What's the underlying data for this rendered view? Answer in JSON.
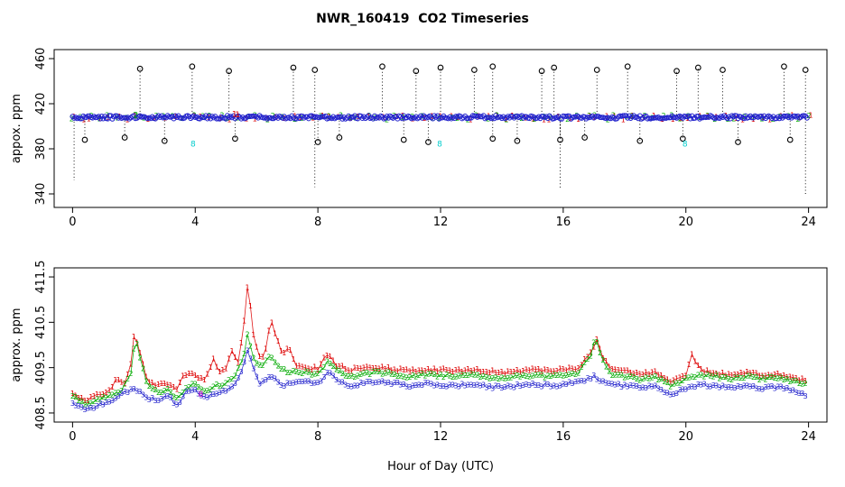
{
  "title": "NWR_160419  CO2 Timeseries",
  "chart_data": [
    {
      "type": "scatter",
      "panel": "top",
      "ylabel": "appox. ppm",
      "ylim": [
        328,
        468
      ],
      "yticks": [
        340,
        380,
        420,
        460
      ],
      "xlim": [
        -0.6,
        24.6
      ],
      "xticks": [
        0,
        4,
        8,
        12,
        16,
        20,
        24
      ],
      "grid": false,
      "band": {
        "x_start": 0,
        "x_end": 23.95,
        "step": 0.05,
        "value": 408,
        "jitter": 1.5,
        "marker": "open-circle",
        "color": "#2222cc",
        "overplot_step": 0.3,
        "overplot_chars": [
          {
            "char": "1",
            "color": "#dd0000"
          },
          {
            "char": "2",
            "color": "#00aa00"
          }
        ]
      },
      "high_spikes": {
        "marker": "open-circle",
        "color": "#000000",
        "stem_from": 410,
        "points": [
          [
            2.2,
            451
          ],
          [
            3.9,
            453
          ],
          [
            5.1,
            449
          ],
          [
            7.2,
            452
          ],
          [
            7.9,
            450
          ],
          [
            10.1,
            453
          ],
          [
            11.2,
            449
          ],
          [
            12.0,
            452
          ],
          [
            13.1,
            450
          ],
          [
            13.7,
            453
          ],
          [
            15.3,
            449
          ],
          [
            15.7,
            452
          ],
          [
            17.1,
            450
          ],
          [
            18.1,
            453
          ],
          [
            19.7,
            449
          ],
          [
            20.4,
            452
          ],
          [
            21.2,
            450
          ],
          [
            23.2,
            453
          ],
          [
            23.9,
            450
          ]
        ]
      },
      "low_spikes": {
        "marker": "open-circle",
        "color": "#000000",
        "stem_from": 405,
        "points": [
          [
            0.4,
            388
          ],
          [
            1.7,
            390
          ],
          [
            3.0,
            387
          ],
          [
            5.3,
            389
          ],
          [
            8.0,
            386
          ],
          [
            8.7,
            390
          ],
          [
            10.8,
            388
          ],
          [
            11.6,
            386
          ],
          [
            13.7,
            389
          ],
          [
            14.5,
            387
          ],
          [
            15.9,
            388
          ],
          [
            16.7,
            390
          ],
          [
            18.5,
            387
          ],
          [
            19.9,
            389
          ],
          [
            21.7,
            386
          ],
          [
            23.4,
            388
          ]
        ]
      },
      "deep_stems": [
        [
          0.05,
          352
        ],
        [
          7.9,
          346
        ],
        [
          15.9,
          344
        ],
        [
          23.9,
          340
        ]
      ],
      "char_marks": [
        {
          "x": 3.93,
          "y": 384.5,
          "char": "8",
          "color": "#00cccc"
        },
        {
          "x": 11.97,
          "y": 384.5,
          "char": "8",
          "color": "#00cccc"
        },
        {
          "x": 19.97,
          "y": 384.5,
          "char": "8",
          "color": "#00cccc"
        },
        {
          "x": 5.28,
          "y": 410.8,
          "char": "1",
          "color": "#dd0000"
        },
        {
          "x": 5.38,
          "y": 410.3,
          "char": "1",
          "color": "#dd0000"
        },
        {
          "x": 2.06,
          "y": 409.9,
          "char": "2",
          "color": "#00aa00"
        }
      ]
    },
    {
      "type": "line",
      "panel": "bottom",
      "ylabel": "approx. ppm",
      "xlabel": "Hour of Day (UTC)",
      "ylim": [
        408.3,
        411.7
      ],
      "yticks": [
        408.5,
        409.5,
        410.5,
        411.5
      ],
      "xlim": [
        -0.6,
        24.6
      ],
      "xticks": [
        0,
        4,
        8,
        12,
        16,
        20,
        24
      ],
      "grid": false,
      "sample_step": 0.1,
      "noise": 0.035,
      "seed": 11,
      "series": [
        {
          "name": "1",
          "char": "1",
          "color": "#dd0000",
          "anchors": [
            [
              0,
              408.95
            ],
            [
              0.4,
              408.78
            ],
            [
              0.8,
              408.88
            ],
            [
              1.2,
              409.0
            ],
            [
              1.45,
              409.25
            ],
            [
              1.7,
              409.15
            ],
            [
              1.9,
              409.55
            ],
            [
              2.02,
              410.3
            ],
            [
              2.2,
              409.8
            ],
            [
              2.45,
              409.2
            ],
            [
              2.8,
              409.1
            ],
            [
              3.1,
              409.15
            ],
            [
              3.4,
              409.0
            ],
            [
              3.6,
              409.3
            ],
            [
              3.8,
              409.4
            ],
            [
              4.0,
              409.3
            ],
            [
              4.3,
              409.22
            ],
            [
              4.6,
              409.7
            ],
            [
              4.8,
              409.4
            ],
            [
              5.0,
              409.5
            ],
            [
              5.2,
              409.9
            ],
            [
              5.4,
              409.6
            ],
            [
              5.58,
              410.4
            ],
            [
              5.72,
              411.45
            ],
            [
              5.88,
              410.3
            ],
            [
              6.05,
              409.8
            ],
            [
              6.25,
              409.7
            ],
            [
              6.45,
              410.55
            ],
            [
              6.65,
              410.2
            ],
            [
              6.85,
              409.75
            ],
            [
              7.05,
              409.95
            ],
            [
              7.3,
              409.55
            ],
            [
              7.6,
              409.5
            ],
            [
              8.0,
              409.48
            ],
            [
              8.3,
              409.8
            ],
            [
              8.55,
              409.58
            ],
            [
              9.0,
              409.45
            ],
            [
              9.5,
              409.48
            ],
            [
              10.0,
              409.5
            ],
            [
              10.5,
              409.46
            ],
            [
              11.0,
              409.42
            ],
            [
              11.5,
              409.46
            ],
            [
              12.0,
              409.45
            ],
            [
              12.5,
              409.42
            ],
            [
              13.0,
              409.45
            ],
            [
              13.5,
              409.42
            ],
            [
              14.0,
              409.38
            ],
            [
              14.5,
              409.42
            ],
            [
              15.0,
              409.45
            ],
            [
              15.5,
              409.42
            ],
            [
              16.0,
              409.45
            ],
            [
              16.5,
              409.5
            ],
            [
              16.9,
              409.85
            ],
            [
              17.1,
              410.1
            ],
            [
              17.35,
              409.65
            ],
            [
              17.6,
              409.45
            ],
            [
              18.0,
              409.42
            ],
            [
              18.5,
              409.36
            ],
            [
              19.0,
              409.4
            ],
            [
              19.5,
              409.2
            ],
            [
              20.0,
              409.35
            ],
            [
              20.2,
              409.8
            ],
            [
              20.45,
              409.45
            ],
            [
              21.0,
              409.38
            ],
            [
              21.5,
              409.33
            ],
            [
              22.0,
              409.38
            ],
            [
              22.5,
              409.33
            ],
            [
              23.0,
              409.36
            ],
            [
              23.5,
              409.28
            ],
            [
              23.92,
              409.22
            ]
          ]
        },
        {
          "name": "2",
          "char": "2",
          "color": "#00aa00",
          "anchors": [
            [
              0,
              408.88
            ],
            [
              0.4,
              408.68
            ],
            [
              0.8,
              408.78
            ],
            [
              1.2,
              408.88
            ],
            [
              1.6,
              409.0
            ],
            [
              1.9,
              409.4
            ],
            [
              2.05,
              410.15
            ],
            [
              2.2,
              409.7
            ],
            [
              2.45,
              409.1
            ],
            [
              2.8,
              408.95
            ],
            [
              3.1,
              409.0
            ],
            [
              3.4,
              408.85
            ],
            [
              3.7,
              409.05
            ],
            [
              4.0,
              409.15
            ],
            [
              4.35,
              408.95
            ],
            [
              4.7,
              409.1
            ],
            [
              5.0,
              409.15
            ],
            [
              5.3,
              409.35
            ],
            [
              5.55,
              409.65
            ],
            [
              5.7,
              410.2
            ],
            [
              5.9,
              409.7
            ],
            [
              6.15,
              409.5
            ],
            [
              6.45,
              409.8
            ],
            [
              6.7,
              409.55
            ],
            [
              7.0,
              409.4
            ],
            [
              7.5,
              409.4
            ],
            [
              8.0,
              409.35
            ],
            [
              8.3,
              409.6
            ],
            [
              8.6,
              409.45
            ],
            [
              9.0,
              409.3
            ],
            [
              9.5,
              409.35
            ],
            [
              10.0,
              409.4
            ],
            [
              10.5,
              409.35
            ],
            [
              11.0,
              409.3
            ],
            [
              11.5,
              409.35
            ],
            [
              12.0,
              409.33
            ],
            [
              12.5,
              409.3
            ],
            [
              13.0,
              409.33
            ],
            [
              13.5,
              409.3
            ],
            [
              14.0,
              409.25
            ],
            [
              14.5,
              409.3
            ],
            [
              15.0,
              409.33
            ],
            [
              15.5,
              409.3
            ],
            [
              16.0,
              409.33
            ],
            [
              16.5,
              409.4
            ],
            [
              16.9,
              409.75
            ],
            [
              17.05,
              410.2
            ],
            [
              17.25,
              409.7
            ],
            [
              17.6,
              409.35
            ],
            [
              18.0,
              409.3
            ],
            [
              18.5,
              409.25
            ],
            [
              19.0,
              409.3
            ],
            [
              19.5,
              409.1
            ],
            [
              20.0,
              409.25
            ],
            [
              20.5,
              409.33
            ],
            [
              21.0,
              409.3
            ],
            [
              21.5,
              409.25
            ],
            [
              22.0,
              409.3
            ],
            [
              22.5,
              409.25
            ],
            [
              23.0,
              409.28
            ],
            [
              23.5,
              409.2
            ],
            [
              23.92,
              409.15
            ]
          ]
        },
        {
          "name": "3",
          "char": "3",
          "color": "#2222cc",
          "anchors": [
            [
              0,
              408.75
            ],
            [
              0.4,
              408.55
            ],
            [
              0.8,
              408.65
            ],
            [
              1.2,
              408.75
            ],
            [
              1.6,
              408.9
            ],
            [
              2.0,
              409.05
            ],
            [
              2.4,
              408.85
            ],
            [
              2.8,
              408.75
            ],
            [
              3.1,
              408.9
            ],
            [
              3.4,
              408.65
            ],
            [
              3.7,
              408.95
            ],
            [
              4.0,
              409.0
            ],
            [
              4.35,
              408.8
            ],
            [
              4.7,
              408.95
            ],
            [
              5.0,
              409.0
            ],
            [
              5.3,
              409.15
            ],
            [
              5.55,
              409.5
            ],
            [
              5.7,
              409.9
            ],
            [
              5.9,
              409.45
            ],
            [
              6.1,
              409.15
            ],
            [
              6.5,
              409.3
            ],
            [
              6.8,
              409.1
            ],
            [
              7.0,
              409.15
            ],
            [
              7.5,
              409.2
            ],
            [
              8.0,
              409.15
            ],
            [
              8.3,
              409.4
            ],
            [
              8.6,
              409.25
            ],
            [
              9.0,
              409.1
            ],
            [
              9.5,
              409.15
            ],
            [
              10.0,
              409.2
            ],
            [
              10.5,
              409.15
            ],
            [
              11.0,
              409.1
            ],
            [
              11.5,
              409.15
            ],
            [
              12.0,
              409.12
            ],
            [
              12.5,
              409.1
            ],
            [
              13.0,
              409.12
            ],
            [
              13.5,
              409.1
            ],
            [
              14.0,
              409.05
            ],
            [
              14.5,
              409.1
            ],
            [
              15.0,
              409.12
            ],
            [
              15.5,
              409.1
            ],
            [
              16.0,
              409.12
            ],
            [
              16.5,
              409.18
            ],
            [
              17.0,
              409.3
            ],
            [
              17.3,
              409.2
            ],
            [
              17.6,
              409.12
            ],
            [
              18.0,
              409.1
            ],
            [
              18.5,
              409.05
            ],
            [
              19.0,
              409.1
            ],
            [
              19.5,
              408.9
            ],
            [
              20.0,
              409.05
            ],
            [
              20.5,
              409.12
            ],
            [
              21.0,
              409.1
            ],
            [
              21.5,
              409.05
            ],
            [
              22.0,
              409.1
            ],
            [
              22.5,
              409.05
            ],
            [
              23.0,
              409.08
            ],
            [
              23.5,
              409.0
            ],
            [
              23.92,
              408.9
            ]
          ]
        }
      ],
      "char_marks": [
        {
          "x": 4.18,
          "y": 408.92,
          "char": "8",
          "color": "#bb00bb"
        }
      ]
    }
  ]
}
